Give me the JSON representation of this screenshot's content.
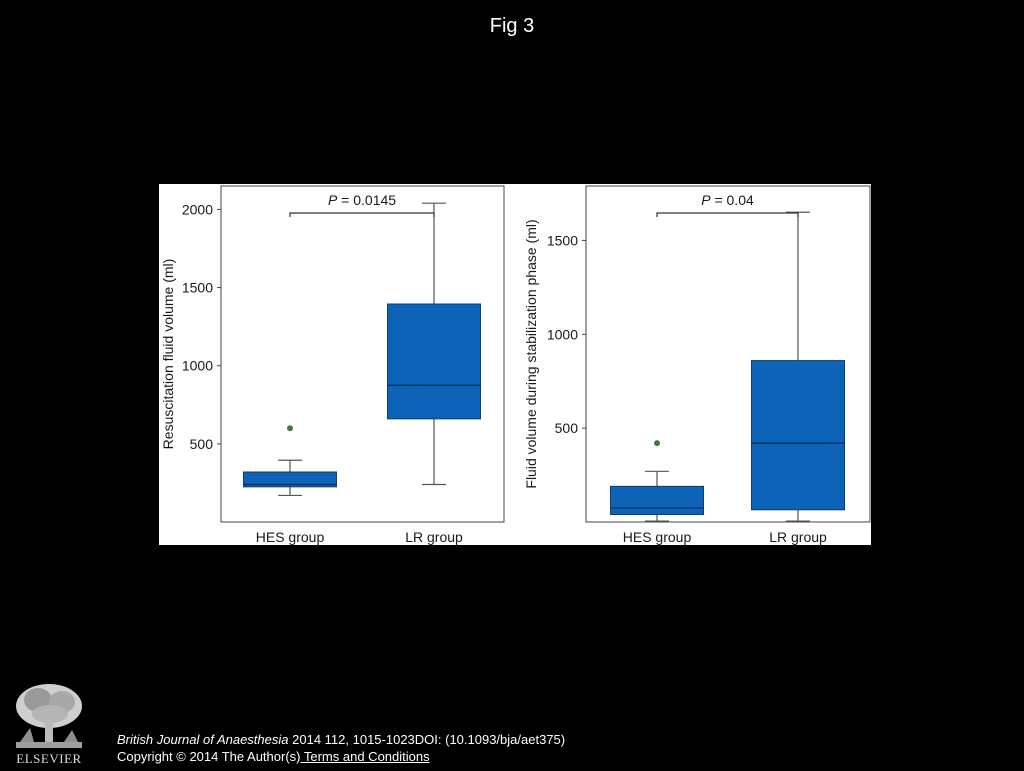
{
  "fig_title": "Fig 3",
  "chart_data": [
    {
      "type": "box",
      "title": "",
      "xlabel": "",
      "ylabel": "Resuscitation fluid volume (ml)",
      "ylim": [
        0,
        2150
      ],
      "yticks": [
        500,
        1000,
        1500,
        2000
      ],
      "annotation": {
        "prefix": "P",
        "text": " = 0.0145",
        "groups": [
          "HES group",
          "LR group"
        ]
      },
      "categories": [
        "HES group",
        "LR group"
      ],
      "boxes": [
        {
          "group": "HES group",
          "min": 170,
          "q1": 225,
          "median": 240,
          "q3": 320,
          "max": 395,
          "outliers": [
            600
          ]
        },
        {
          "group": "LR group",
          "min": 240,
          "q1": 660,
          "median": 875,
          "q3": 1395,
          "max": 2040,
          "outliers": []
        }
      ]
    },
    {
      "type": "box",
      "title": "",
      "xlabel": "",
      "ylabel": "Fluid volume during stabilization phase (ml)",
      "ylim": [
        0,
        1790
      ],
      "yticks": [
        500,
        1000,
        1500
      ],
      "annotation": {
        "prefix": "P",
        "text": " = 0.04",
        "groups": [
          "HES group",
          "LR group"
        ]
      },
      "categories": [
        "HES group",
        "LR group"
      ],
      "boxes": [
        {
          "group": "HES group",
          "min": 5,
          "q1": 40,
          "median": 75,
          "q3": 190,
          "max": 270,
          "outliers": [
            420
          ]
        },
        {
          "group": "LR group",
          "min": 5,
          "q1": 65,
          "median": 420,
          "q3": 860,
          "max": 1650,
          "outliers": []
        }
      ]
    }
  ],
  "colors": {
    "box_fill": "#0d63b8",
    "box_edge": "#0a3f73",
    "whisker": "#555555",
    "outlier": "#3d7d3d",
    "bracket": "#333333"
  },
  "citation": {
    "journal": "British Journal of Anaesthesia",
    "details": " 2014 112, 1015-1023DOI: (10.1093/bja/aet375)",
    "copyright": "Copyright © 2014 The Author(s)",
    "link": " Terms and Conditions"
  },
  "logo": {
    "text": "ELSEVIER",
    "icon": "elsevier-tree-icon"
  }
}
